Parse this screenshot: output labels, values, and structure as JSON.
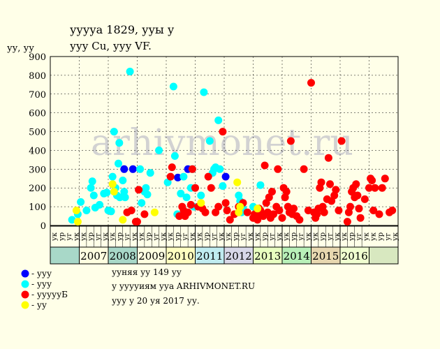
{
  "title": "ууууа 1829, ууы у",
  "subtitle": "ууу Cu, ууу VF.",
  "ylabel": "уу, уу",
  "watermark": "arhivmonet.ru",
  "info_lines": [
    "ууняя уу 149 уу",
    "у ууууиям ууа ARHIVMONET.RU",
    "ууу у 20 уя 2017 уу."
  ],
  "legend": [
    {
      "color": "#0000ff",
      "label": "- ууу"
    },
    {
      "color": "#00ffff",
      "label": "- ууу"
    },
    {
      "color": "#ff0000",
      "label": "- уууууБ"
    },
    {
      "color": "#ffff00",
      "label": "- уу"
    }
  ],
  "chart_data": {
    "type": "scatter",
    "ylim": [
      0,
      900
    ],
    "yticks": [
      0,
      100,
      200,
      300,
      400,
      500,
      600,
      700,
      800,
      900
    ],
    "grid": true,
    "years": [
      {
        "label": "2007",
        "color": "#ffffe0"
      },
      {
        "label": "2008",
        "color": "#a8d8c8"
      },
      {
        "label": "2009",
        "color": "#ffffe0"
      },
      {
        "label": "2010",
        "color": "#ffffc0"
      },
      {
        "label": "2011",
        "color": "#c0ecf0"
      },
      {
        "label": "2012",
        "color": "#d8d8e8"
      },
      {
        "label": "2013",
        "color": "#e8ffc0"
      },
      {
        "label": "2014",
        "color": "#b8f0b8"
      },
      {
        "label": "2015",
        "color": "#e8d8b0"
      },
      {
        "label": "2016",
        "color": "#f0ffd0"
      }
    ],
    "quarter_labels": [
      "ук",
      "ур",
      "уг",
      "ук"
    ],
    "side_cells": {
      "left": "#a8d8c8",
      "right": "#d8e8c0"
    },
    "series": [
      {
        "name": "blue",
        "color": "#0000ff",
        "points": [
          [
            2008.05,
            300
          ],
          [
            2008.35,
            300
          ],
          [
            2009.9,
            255
          ],
          [
            2010.25,
            300
          ],
          [
            2011.55,
            260
          ]
        ]
      },
      {
        "name": "cyan",
        "color": "#00ffff",
        "points": [
          [
            2006.25,
            30
          ],
          [
            2006.45,
            60
          ],
          [
            2006.55,
            125
          ],
          [
            2006.75,
            80
          ],
          [
            2006.9,
            200
          ],
          [
            2006.95,
            235
          ],
          [
            2007.0,
            160
          ],
          [
            2007.05,
            95
          ],
          [
            2007.2,
            110
          ],
          [
            2007.35,
            170
          ],
          [
            2007.45,
            175
          ],
          [
            2007.5,
            80
          ],
          [
            2007.6,
            75
          ],
          [
            2007.65,
            260
          ],
          [
            2007.7,
            500
          ],
          [
            2007.75,
            200
          ],
          [
            2007.8,
            160
          ],
          [
            2007.85,
            330
          ],
          [
            2007.88,
            440
          ],
          [
            2007.9,
            150
          ],
          [
            2008.0,
            240
          ],
          [
            2008.05,
            180
          ],
          [
            2008.08,
            150
          ],
          [
            2008.25,
            820
          ],
          [
            2008.6,
            300
          ],
          [
            2008.65,
            120
          ],
          [
            2008.75,
            180
          ],
          [
            2008.8,
            200
          ],
          [
            2008.85,
            165
          ],
          [
            2008.95,
            280
          ],
          [
            2009.25,
            400
          ],
          [
            2009.55,
            230
          ],
          [
            2009.75,
            740
          ],
          [
            2009.8,
            370
          ],
          [
            2009.88,
            60
          ],
          [
            2010.0,
            170
          ],
          [
            2010.1,
            260
          ],
          [
            2010.2,
            150
          ],
          [
            2010.35,
            200
          ],
          [
            2010.4,
            300
          ],
          [
            2010.45,
            100
          ],
          [
            2010.7,
            160
          ],
          [
            2010.8,
            710
          ],
          [
            2011.0,
            450
          ],
          [
            2011.1,
            280
          ],
          [
            2011.15,
            300
          ],
          [
            2011.2,
            310
          ],
          [
            2011.3,
            560
          ],
          [
            2011.35,
            300
          ],
          [
            2011.45,
            210
          ],
          [
            2012.0,
            160
          ],
          [
            2012.05,
            130
          ],
          [
            2012.1,
            70
          ],
          [
            2012.15,
            90
          ],
          [
            2012.5,
            100
          ],
          [
            2012.75,
            215
          ]
        ]
      },
      {
        "name": "red",
        "color": "#ff0000",
        "points": [
          [
            2008.15,
            70
          ],
          [
            2008.3,
            80
          ],
          [
            2008.45,
            20
          ],
          [
            2008.5,
            20
          ],
          [
            2008.55,
            190
          ],
          [
            2008.75,
            60
          ],
          [
            2009.65,
            260
          ],
          [
            2009.7,
            310
          ],
          [
            2009.95,
            50
          ],
          [
            2010.05,
            100
          ],
          [
            2010.1,
            80
          ],
          [
            2010.15,
            50
          ],
          [
            2010.25,
            70
          ],
          [
            2010.35,
            110
          ],
          [
            2010.4,
            300
          ],
          [
            2010.5,
            200
          ],
          [
            2010.6,
            100
          ],
          [
            2010.75,
            90
          ],
          [
            2010.85,
            70
          ],
          [
            2010.95,
            260
          ],
          [
            2011.05,
            200
          ],
          [
            2011.2,
            70
          ],
          [
            2011.3,
            100
          ],
          [
            2011.45,
            500
          ],
          [
            2011.55,
            120
          ],
          [
            2011.6,
            80
          ],
          [
            2011.7,
            30
          ],
          [
            2011.85,
            60
          ],
          [
            2012.0,
            100
          ],
          [
            2012.15,
            120
          ],
          [
            2012.3,
            70
          ],
          [
            2012.5,
            40
          ],
          [
            2012.55,
            60
          ],
          [
            2012.6,
            40
          ],
          [
            2012.65,
            30
          ],
          [
            2012.7,
            90
          ],
          [
            2012.75,
            80
          ],
          [
            2012.8,
            60
          ],
          [
            2012.85,
            50
          ],
          [
            2012.9,
            320
          ],
          [
            2012.95,
            120
          ],
          [
            2013.0,
            70
          ],
          [
            2013.05,
            150
          ],
          [
            2013.1,
            40
          ],
          [
            2013.15,
            180
          ],
          [
            2013.2,
            60
          ],
          [
            2013.3,
            100
          ],
          [
            2013.35,
            300
          ],
          [
            2013.4,
            80
          ],
          [
            2013.5,
            40
          ],
          [
            2013.55,
            200
          ],
          [
            2013.6,
            150
          ],
          [
            2013.65,
            180
          ],
          [
            2013.7,
            100
          ],
          [
            2013.75,
            70
          ],
          [
            2013.8,
            450
          ],
          [
            2013.85,
            60
          ],
          [
            2013.9,
            90
          ],
          [
            2014.0,
            50
          ],
          [
            2014.1,
            30
          ],
          [
            2014.25,
            300
          ],
          [
            2014.4,
            80
          ],
          [
            2014.5,
            760
          ],
          [
            2014.6,
            70
          ],
          [
            2014.65,
            40
          ],
          [
            2014.7,
            60
          ],
          [
            2014.75,
            90
          ],
          [
            2014.8,
            200
          ],
          [
            2014.85,
            230
          ],
          [
            2014.9,
            100
          ],
          [
            2014.95,
            70
          ],
          [
            2015.05,
            140
          ],
          [
            2015.1,
            360
          ],
          [
            2015.15,
            220
          ],
          [
            2015.2,
            130
          ],
          [
            2015.3,
            160
          ],
          [
            2015.35,
            190
          ],
          [
            2015.45,
            80
          ],
          [
            2015.55,
            450
          ],
          [
            2015.75,
            20
          ],
          [
            2015.8,
            70
          ],
          [
            2015.85,
            100
          ],
          [
            2015.9,
            180
          ],
          [
            2015.95,
            200
          ],
          [
            2016.0,
            150
          ],
          [
            2016.05,
            220
          ],
          [
            2016.1,
            160
          ],
          [
            2016.15,
            90
          ],
          [
            2016.2,
            40
          ],
          [
            2016.35,
            140
          ],
          [
            2016.5,
            200
          ],
          [
            2016.55,
            250
          ],
          [
            2016.6,
            240
          ],
          [
            2016.65,
            80
          ],
          [
            2016.7,
            200
          ],
          [
            2016.85,
            60
          ],
          [
            2016.95,
            200
          ],
          [
            2017.05,
            250
          ],
          [
            2017.2,
            70
          ],
          [
            2017.3,
            80
          ]
        ]
      },
      {
        "name": "yellow",
        "color": "#ffff00",
        "points": [
          [
            2006.4,
            80
          ],
          [
            2006.45,
            20
          ],
          [
            2007.65,
            220
          ],
          [
            2007.7,
            180
          ],
          [
            2008.0,
            30
          ],
          [
            2009.1,
            70
          ],
          [
            2010.7,
            120
          ],
          [
            2011.95,
            230
          ],
          [
            2012.0,
            70
          ],
          [
            2012.05,
            100
          ],
          [
            2012.65,
            90
          ]
        ]
      }
    ]
  }
}
